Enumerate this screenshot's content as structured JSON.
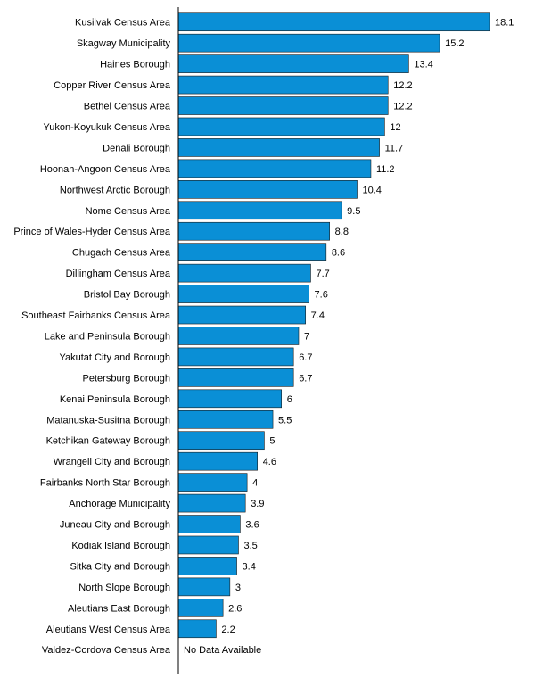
{
  "chart_data": {
    "type": "bar",
    "orientation": "horizontal",
    "title": "",
    "xlabel": "",
    "ylabel": "",
    "xlim": [
      0,
      18.1
    ],
    "grid": false,
    "legend": "none",
    "bar_color": "#0a8fd6",
    "categories": [
      "Kusilvak Census Area",
      "Skagway Municipality",
      "Haines Borough",
      "Copper River Census Area",
      "Bethel Census Area",
      "Yukon-Koyukuk Census Area",
      "Denali Borough",
      "Hoonah-Angoon Census Area",
      "Northwest Arctic Borough",
      "Nome Census Area",
      "Prince of Wales-Hyder Census Area",
      "Chugach Census Area",
      "Dillingham Census Area",
      "Bristol Bay Borough",
      "Southeast Fairbanks Census Area",
      "Lake and Peninsula Borough",
      "Yakutat City and Borough",
      "Petersburg Borough",
      "Kenai Peninsula Borough",
      "Matanuska-Susitna Borough",
      "Ketchikan Gateway Borough",
      "Wrangell City and Borough",
      "Fairbanks North Star Borough",
      "Anchorage Municipality",
      "Juneau City and Borough",
      "Kodiak Island Borough",
      "Sitka City and Borough",
      "North Slope Borough",
      "Aleutians East Borough",
      "Aleutians West Census Area",
      "Valdez-Cordova Census Area"
    ],
    "values": [
      18.1,
      15.2,
      13.4,
      12.2,
      12.2,
      12,
      11.7,
      11.2,
      10.4,
      9.5,
      8.8,
      8.6,
      7.7,
      7.6,
      7.4,
      7,
      6.7,
      6.7,
      6,
      5.5,
      5,
      4.6,
      4,
      3.9,
      3.6,
      3.5,
      3.4,
      3,
      2.6,
      2.2,
      null
    ],
    "value_labels": [
      "18.1",
      "15.2",
      "13.4",
      "12.2",
      "12.2",
      "12",
      "11.7",
      "11.2",
      "10.4",
      "9.5",
      "8.8",
      "8.6",
      "7.7",
      "7.6",
      "7.4",
      "7",
      "6.7",
      "6.7",
      "6",
      "5.5",
      "5",
      "4.6",
      "4",
      "3.9",
      "3.6",
      "3.5",
      "3.4",
      "3",
      "2.6",
      "2.2",
      "No Data Available"
    ]
  }
}
